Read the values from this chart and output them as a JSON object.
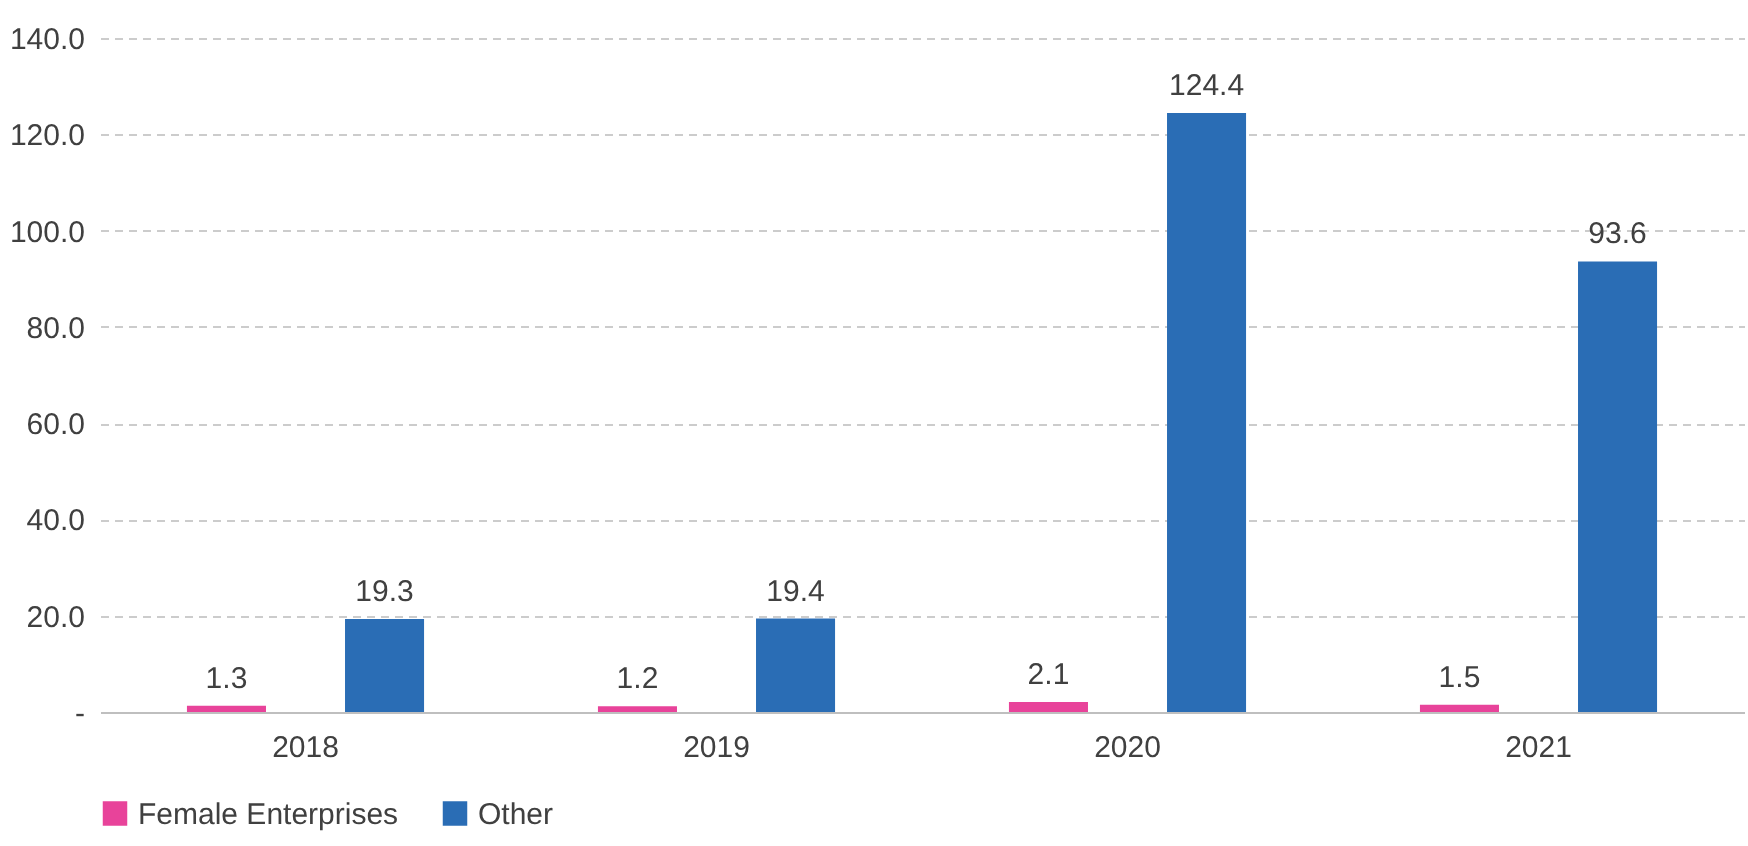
{
  "chart_data": {
    "type": "bar",
    "categories": [
      "2018",
      "2019",
      "2020",
      "2021"
    ],
    "series": [
      {
        "name": "Female Enterprises",
        "color": "#e8439a",
        "values": [
          1.3,
          1.2,
          2.1,
          1.5
        ]
      },
      {
        "name": "Other",
        "color": "#2a6db5",
        "values": [
          19.3,
          19.4,
          124.4,
          93.6
        ]
      }
    ],
    "ylim": [
      0,
      140
    ],
    "yticks": [
      {
        "value": 0,
        "label": "-"
      },
      {
        "value": 20,
        "label": "20.0"
      },
      {
        "value": 40,
        "label": "40.0"
      },
      {
        "value": 60,
        "label": "60.0"
      },
      {
        "value": 80,
        "label": "80.0"
      },
      {
        "value": 100,
        "label": "100.0"
      },
      {
        "value": 120,
        "label": "120.0"
      },
      {
        "value": 140,
        "label": "140.0"
      }
    ],
    "grid": "y",
    "legend": "bottom",
    "data_labels": true
  }
}
